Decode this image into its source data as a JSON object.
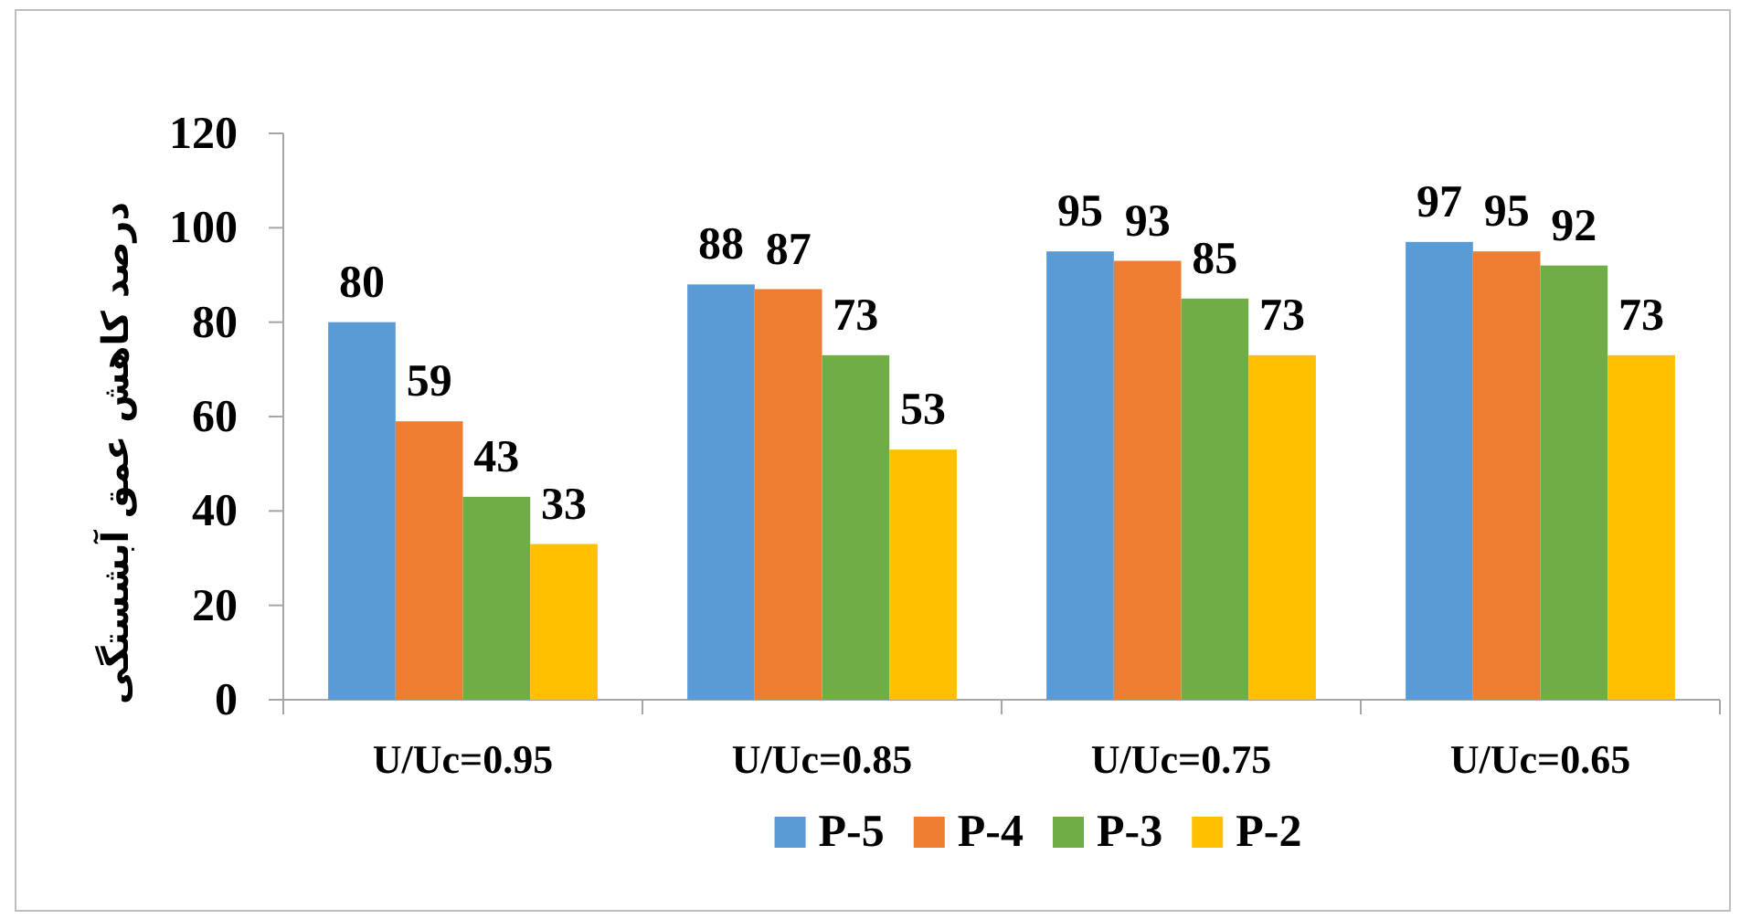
{
  "chart_data": {
    "type": "bar",
    "ylabel": "درصد کاهش عمق آبشستگی",
    "categories": [
      "U/Uc=0.95",
      "U/Uc=0.85",
      "U/Uc=0.75",
      "U/Uc=0.65"
    ],
    "series": [
      {
        "name": "P-5",
        "color": "#5b9bd5",
        "values": [
          80,
          88,
          95,
          97
        ]
      },
      {
        "name": "P-4",
        "color": "#ed7d31",
        "values": [
          59,
          87,
          93,
          95
        ]
      },
      {
        "name": "P-3",
        "color": "#70ad47",
        "values": [
          43,
          73,
          85,
          92
        ]
      },
      {
        "name": "P-2",
        "color": "#ffc000",
        "values": [
          33,
          53,
          73,
          73
        ]
      }
    ],
    "ylim": [
      0,
      120
    ],
    "yticks": [
      0,
      20,
      40,
      60,
      80,
      100,
      120
    ],
    "data_labels": true,
    "legend": "bottom",
    "grid": false
  }
}
